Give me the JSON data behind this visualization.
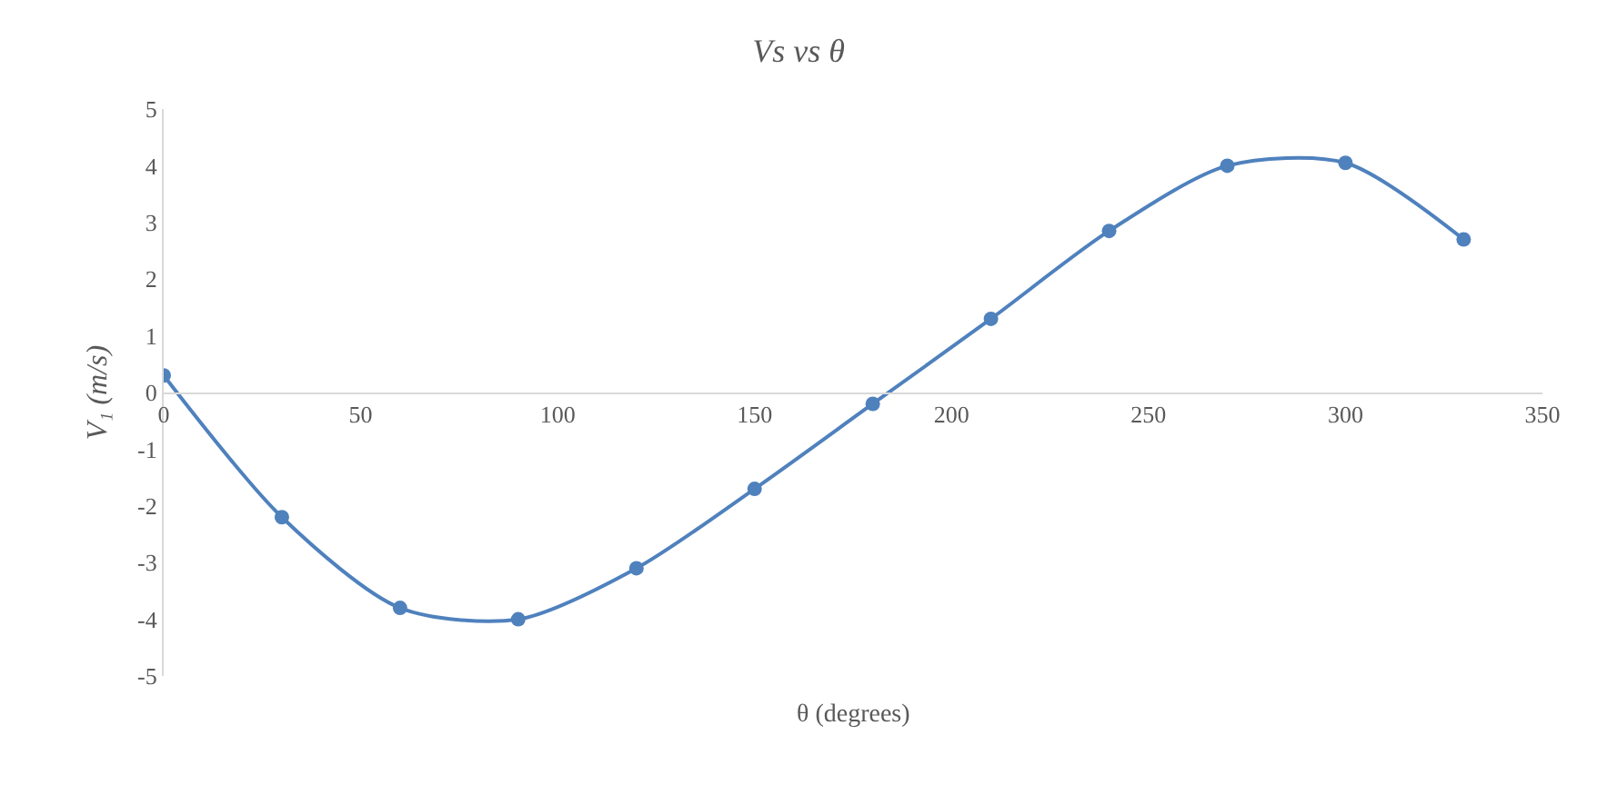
{
  "chart_data": {
    "type": "line",
    "title": "Vs vs θ",
    "xlabel": "θ (degrees)",
    "ylabel": "V₁ (m/s)",
    "x": [
      0,
      30,
      60,
      90,
      120,
      150,
      180,
      210,
      240,
      270,
      300,
      330
    ],
    "series": [
      {
        "color": "#4f81bd",
        "values": [
          0.3,
          -2.2,
          -3.8,
          -4.0,
          -3.1,
          -1.7,
          -0.2,
          1.3,
          2.85,
          4.0,
          4.05,
          2.7
        ]
      }
    ],
    "xlim": [
      0,
      350
    ],
    "xticks": [
      0,
      50,
      100,
      150,
      200,
      250,
      300,
      350
    ],
    "ylim": [
      -5,
      5
    ],
    "yticks": [
      -5,
      -4,
      -3,
      -2,
      -1,
      0,
      1,
      2,
      3,
      4,
      5
    ],
    "marker": "circle",
    "line_style": "solid"
  }
}
